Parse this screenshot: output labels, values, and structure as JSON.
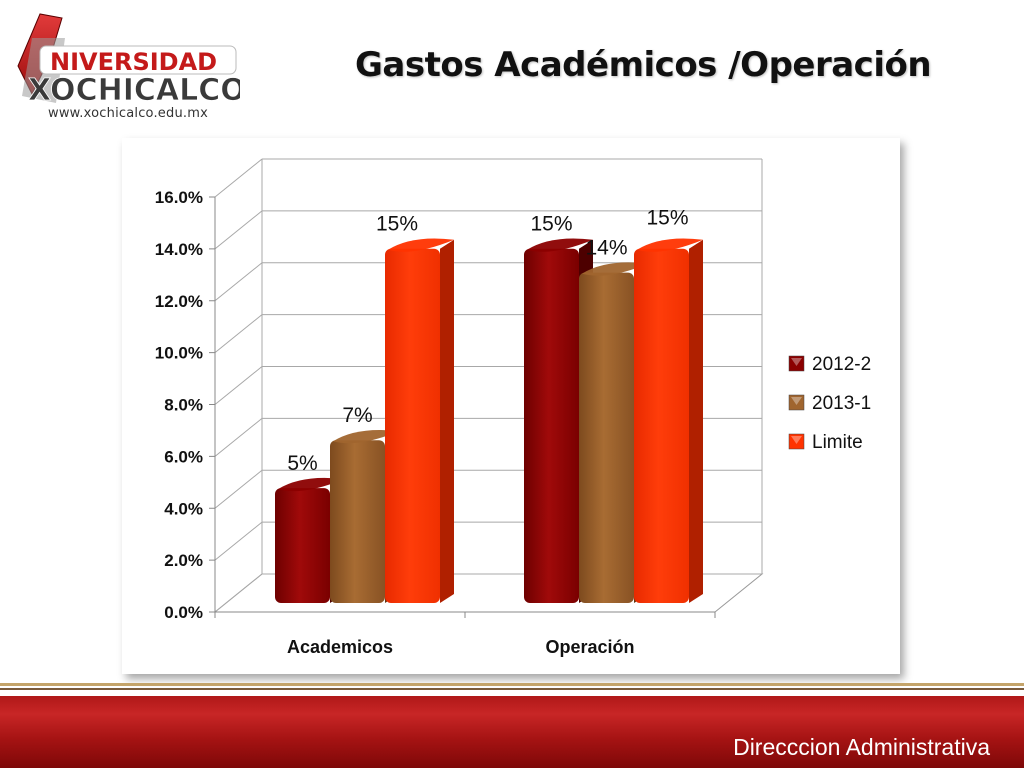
{
  "logo": {
    "name_line1": "NIVERSIDAD",
    "name_line2": "XOCHICALCO",
    "url": "www.xochicalco.edu.mx"
  },
  "slide": {
    "title": "Gastos Académicos /Operación",
    "footer": "Direcccion Administrativa"
  },
  "colors": {
    "series_2012_2": "#8b0000",
    "series_2013_1": "#a0652e",
    "series_limite": "#ff3300",
    "footer_bar": "#b01818"
  },
  "chart_data": {
    "type": "bar",
    "categories": [
      "Academicos",
      "Operación"
    ],
    "series": [
      {
        "name": "2012-2",
        "values": [
          0.048,
          0.148
        ],
        "labels": [
          "5%",
          "15%"
        ]
      },
      {
        "name": "2013-1",
        "values": [
          0.068,
          0.138
        ],
        "labels": [
          "7%",
          "14%"
        ]
      },
      {
        "name": "Limite",
        "values": [
          0.148,
          0.148
        ],
        "labels": [
          "15%",
          "15%"
        ]
      }
    ],
    "yticks": [
      "0.0%",
      "2.0%",
      "4.0%",
      "6.0%",
      "8.0%",
      "10.0%",
      "12.0%",
      "14.0%",
      "16.0%"
    ],
    "ylim": [
      0,
      0.16
    ],
    "grid": true,
    "legend_position": "right",
    "style": "3d-columns"
  }
}
